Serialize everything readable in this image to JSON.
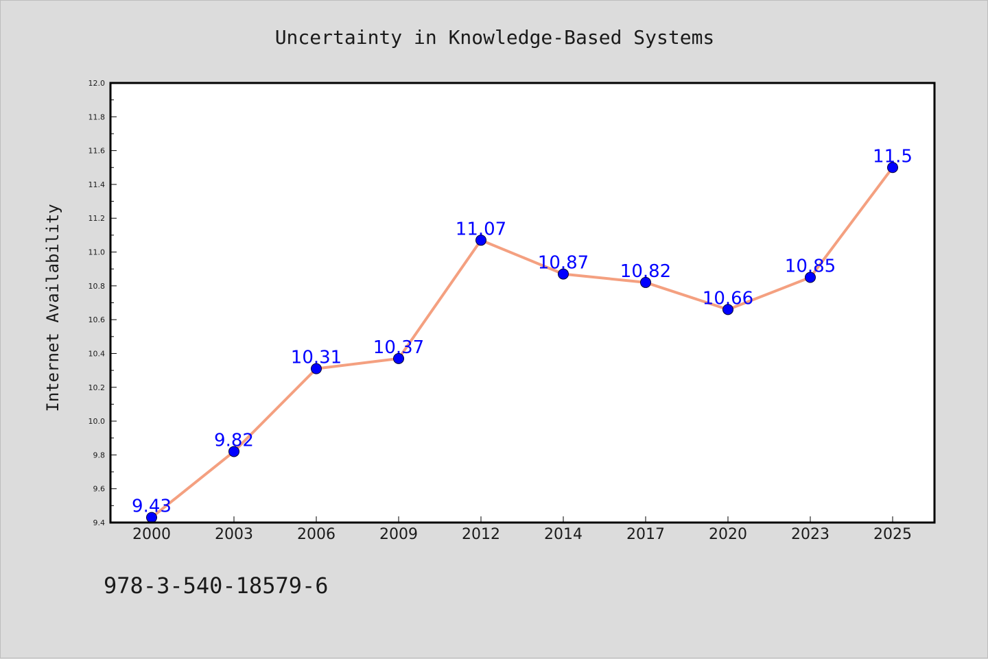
{
  "chart_data": {
    "type": "line",
    "title": "Uncertainty in Knowledge-Based Systems",
    "xlabel": "",
    "ylabel": "Internet Availability",
    "categories": [
      "2000",
      "2003",
      "2006",
      "2009",
      "2012",
      "2014",
      "2017",
      "2020",
      "2023",
      "2025"
    ],
    "series": [
      {
        "values": [
          9.43,
          9.82,
          10.31,
          10.37,
          11.07,
          10.87,
          10.82,
          10.66,
          10.85,
          11.5
        ],
        "labels": [
          "9.43",
          "9.82",
          "10.31",
          "10.37",
          "11.07",
          "10.87",
          "10.82",
          "10.66",
          "10.85",
          "11.5"
        ],
        "line_color": "#f4a080",
        "marker_color": "#0000ff"
      }
    ],
    "ylim": [
      9.4,
      12.0
    ],
    "yticks": [
      "9.4",
      "9.6",
      "9.8",
      "10.0",
      "10.2",
      "10.4",
      "10.6",
      "10.8",
      "11.0",
      "11.2",
      "11.4",
      "11.6",
      "11.8",
      "12.0"
    ],
    "grid": false,
    "legend": "none"
  },
  "footer": {
    "text": "978-3-540-18579-6"
  },
  "colors": {
    "background": "#dcdcdc",
    "plot_area": "#ffffff",
    "line": "#f4a080",
    "marker": "#0000ff",
    "point_label": "#0000ff"
  }
}
